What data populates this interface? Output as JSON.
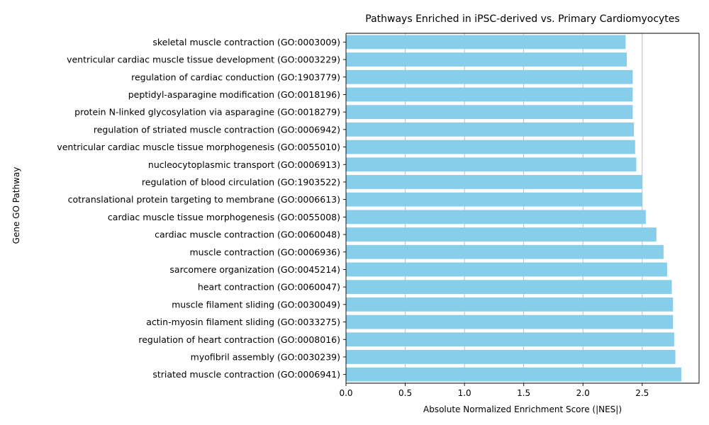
{
  "chart_data": {
    "type": "bar",
    "orientation": "horizontal",
    "title": "Pathways Enriched in iPSC-derived vs. Primary Cardiomyocytes",
    "xlabel": "Absolute Normalized Enrichment Score (|NES|)",
    "ylabel": "Gene GO Pathway",
    "xlim": [
      0,
      2.98
    ],
    "xticks": [
      0.0,
      0.5,
      1.0,
      1.5,
      2.0,
      2.5
    ],
    "xtick_labels": [
      "0.0",
      "0.5",
      "1.0",
      "1.5",
      "2.0",
      "2.5"
    ],
    "grid": "x",
    "bar_color": "#87ceeb",
    "categories": [
      "striated muscle contraction (GO:0006941)",
      "myofibril assembly (GO:0030239)",
      "regulation of heart contraction (GO:0008016)",
      "actin-myosin filament sliding (GO:0033275)",
      "muscle filament sliding (GO:0030049)",
      "heart contraction (GO:0060047)",
      "sarcomere organization (GO:0045214)",
      "muscle contraction (GO:0006936)",
      "cardiac muscle contraction (GO:0060048)",
      "cardiac muscle tissue morphogenesis (GO:0055008)",
      "cotranslational protein targeting to membrane (GO:0006613)",
      "regulation of blood circulation (GO:1903522)",
      "nucleocytoplasmic transport (GO:0006913)",
      "ventricular cardiac muscle tissue morphogenesis (GO:0055010)",
      "regulation of striated muscle contraction (GO:0006942)",
      "protein N-linked glycosylation via asparagine (GO:0018279)",
      "peptidyl-asparagine modification (GO:0018196)",
      "regulation of cardiac conduction (GO:1903779)",
      "ventricular cardiac muscle tissue development (GO:0003229)",
      "skeletal muscle contraction (GO:0003009)"
    ],
    "values": [
      2.83,
      2.78,
      2.77,
      2.76,
      2.76,
      2.75,
      2.71,
      2.68,
      2.62,
      2.53,
      2.5,
      2.5,
      2.45,
      2.44,
      2.43,
      2.42,
      2.42,
      2.42,
      2.37,
      2.36
    ]
  }
}
